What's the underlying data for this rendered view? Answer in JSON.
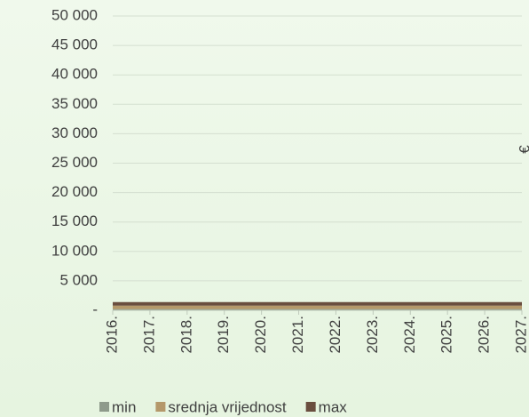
{
  "chart_data": {
    "type": "stacked_area",
    "axis_label": "€",
    "categories": [
      "2016.",
      "2017.",
      "2018.",
      "2019.",
      "2020.",
      "2021.",
      "2022.",
      "2023.",
      "2024.",
      "2025.",
      "2026.",
      "2027."
    ],
    "series": [
      {
        "name": "min",
        "color": "#8e9a8b",
        "values": [
          200,
          200,
          200,
          200,
          200,
          200,
          200,
          200,
          200,
          200,
          200,
          200
        ]
      },
      {
        "name": "srednja vrijednost",
        "color": "#b4986a",
        "values": [
          600,
          600,
          600,
          600,
          600,
          600,
          600,
          600,
          600,
          600,
          600,
          600
        ]
      },
      {
        "name": "max",
        "color": "#6a4e3f",
        "values": [
          600,
          600,
          600,
          600,
          600,
          600,
          600,
          600,
          600,
          600,
          600,
          600
        ]
      }
    ],
    "ylim": [
      0,
      50000
    ],
    "yticks": [
      {
        "value": 0,
        "label": "-"
      },
      {
        "value": 5000,
        "label": "5 000"
      },
      {
        "value": 10000,
        "label": "10 000"
      },
      {
        "value": 15000,
        "label": "15 000"
      },
      {
        "value": 20000,
        "label": "20 000"
      },
      {
        "value": 25000,
        "label": "25 000"
      },
      {
        "value": 30000,
        "label": "30 000"
      },
      {
        "value": 35000,
        "label": "35 000"
      },
      {
        "value": 40000,
        "label": "40 000"
      },
      {
        "value": 45000,
        "label": "45 000"
      },
      {
        "value": 50000,
        "label": "50 000"
      }
    ],
    "grid": true,
    "legend": "bottom"
  }
}
